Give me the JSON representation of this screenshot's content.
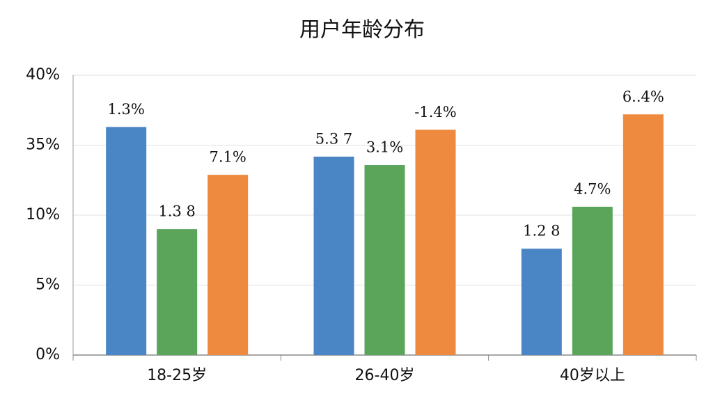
{
  "chart_data": {
    "type": "bar",
    "title": "用户年龄分布",
    "categories": [
      "18-25岁",
      "26-40岁",
      "40岁以上"
    ],
    "series": [
      {
        "color": "#4a86c5",
        "values": [
          36.3,
          30.9,
          7.6
        ],
        "labels": [
          "1.3%",
          "5.3 7",
          "1.2 8"
        ]
      },
      {
        "color": "#5aa55a",
        "values": [
          9.0,
          27.9,
          13.0
        ],
        "labels": [
          "1.3 8",
          "3.1%",
          "4.7%"
        ]
      },
      {
        "color": "#ee8a3f",
        "values": [
          24.4,
          36.1,
          37.2
        ],
        "labels": [
          "7.1%",
          "-1.4%",
          "6..4%"
        ]
      }
    ],
    "ylim": [
      0,
      40
    ],
    "yticks": [
      {
        "value": 0,
        "label": "0%"
      },
      {
        "value": 5,
        "label": "5%"
      },
      {
        "value": 10,
        "label": "10%"
      },
      {
        "value": 35,
        "label": "35%"
      },
      {
        "value": 40,
        "label": "40%"
      }
    ],
    "grid": true
  }
}
